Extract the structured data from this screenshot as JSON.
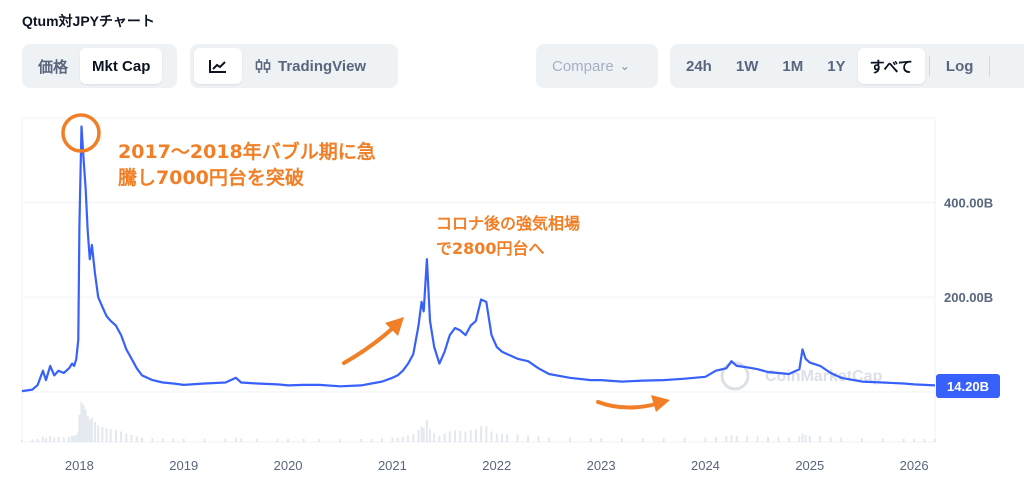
{
  "title": "Qtum対JPYチャート",
  "toolbar": {
    "metric_tabs": [
      "価格",
      "Mkt Cap"
    ],
    "active_metric": "Mkt Cap",
    "view_tabs": [
      "TradingView"
    ],
    "line_chart_icon": "line-chart-icon",
    "candlestick_icon": "candlestick-icon",
    "compare_label": "Compare",
    "ranges": [
      "24h",
      "1W",
      "1M",
      "1Y",
      "すべて"
    ],
    "active_range": "すべて",
    "log_label": "Log"
  },
  "chart_data": {
    "type": "line",
    "x_ticks": [
      "2018",
      "2019",
      "2020",
      "2021",
      "2022",
      "2023",
      "2024",
      "2025",
      "2026"
    ],
    "y_ticks": [
      "200.00B",
      "400.00B"
    ],
    "ylim": [
      0,
      580
    ],
    "xlim": [
      2017.45,
      2026.2
    ],
    "current_value_label": "14.20B",
    "line_color": "#3861fb",
    "accent_color": "#f07f27",
    "series": [
      {
        "x": [
          2017.45,
          2017.55,
          2017.6,
          2017.65,
          2017.68,
          2017.72,
          2017.76,
          2017.8,
          2017.85,
          2017.9,
          2017.93,
          2017.95,
          2017.97,
          2017.99,
          2018.0,
          2018.02,
          2018.04,
          2018.06,
          2018.08,
          2018.1,
          2018.12,
          2018.15,
          2018.18,
          2018.22,
          2018.26,
          2018.3,
          2018.35,
          2018.4,
          2018.45,
          2018.5,
          2018.55,
          2018.6,
          2018.7,
          2018.8,
          2018.9,
          2019.0,
          2019.2,
          2019.4,
          2019.5,
          2019.55,
          2019.7,
          2019.9,
          2020.0,
          2020.15,
          2020.3,
          2020.5,
          2020.7,
          2020.8,
          2020.9,
          2021.0,
          2021.05,
          2021.1,
          2021.15,
          2021.2,
          2021.25,
          2021.28,
          2021.3,
          2021.33,
          2021.36,
          2021.4,
          2021.45,
          2021.5,
          2021.55,
          2021.6,
          2021.65,
          2021.7,
          2021.75,
          2021.8,
          2021.85,
          2021.9,
          2021.95,
          2022.0,
          2022.05,
          2022.1,
          2022.2,
          2022.3,
          2022.4,
          2022.5,
          2022.7,
          2022.9,
          2023.0,
          2023.2,
          2023.4,
          2023.6,
          2023.8,
          2024.0,
          2024.1,
          2024.2,
          2024.25,
          2024.3,
          2024.4,
          2024.5,
          2024.6,
          2024.7,
          2024.8,
          2024.9,
          2024.93,
          2024.96,
          2025.0,
          2025.1,
          2025.2,
          2025.3,
          2025.5,
          2025.7,
          2025.9,
          2026.0,
          2026.1,
          2026.2
        ],
        "y": [
          2,
          5,
          15,
          45,
          25,
          55,
          35,
          45,
          40,
          50,
          60,
          55,
          70,
          110,
          350,
          560,
          490,
          430,
          340,
          280,
          310,
          250,
          200,
          180,
          160,
          150,
          140,
          120,
          90,
          70,
          50,
          35,
          25,
          20,
          18,
          15,
          18,
          20,
          30,
          20,
          18,
          16,
          14,
          15,
          15,
          12,
          14,
          18,
          22,
          30,
          35,
          45,
          60,
          80,
          140,
          190,
          170,
          280,
          150,
          95,
          60,
          85,
          120,
          135,
          130,
          120,
          140,
          150,
          195,
          190,
          120,
          95,
          85,
          80,
          70,
          65,
          50,
          38,
          30,
          25,
          25,
          22,
          24,
          25,
          28,
          32,
          45,
          50,
          65,
          55,
          52,
          48,
          42,
          40,
          38,
          48,
          90,
          70,
          62,
          55,
          40,
          30,
          22,
          20,
          18,
          16,
          15,
          14
        ]
      }
    ]
  },
  "annotations": {
    "peak_line1": "2017〜2018年バブル期に急",
    "peak_line2": "騰し7000円台を突破",
    "second_line1": "コロナ後の強気相場",
    "second_line2": "で2800円台へ"
  },
  "watermark": "CoinMarketCap"
}
